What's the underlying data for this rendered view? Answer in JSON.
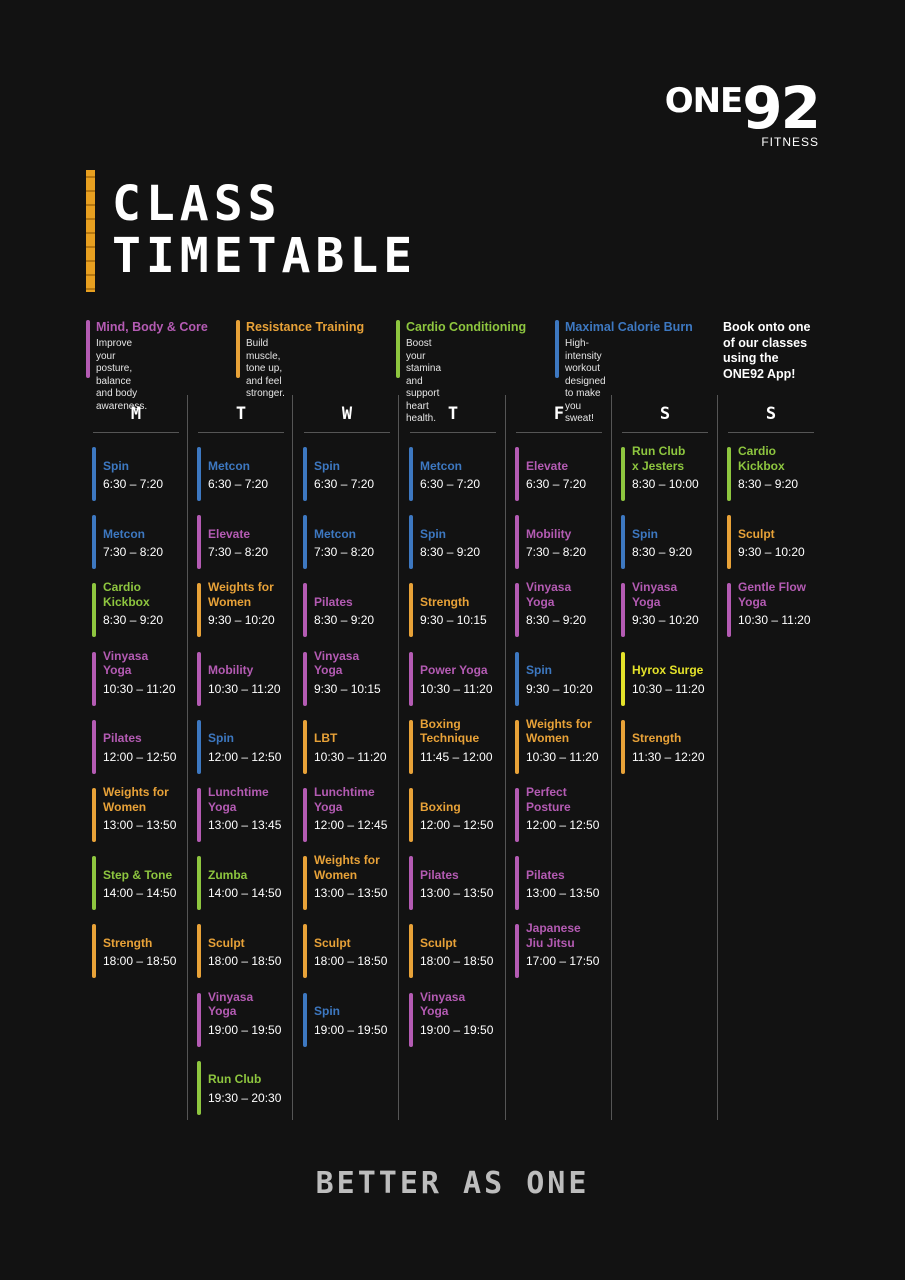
{
  "logo": {
    "one": "ONE",
    "num": "92",
    "sub": "FITNESS"
  },
  "title": {
    "line1": "CLASS",
    "line2": "TIMETABLE"
  },
  "colors": {
    "mind": "#b45bb3",
    "resistance": "#e8a238",
    "cardio": "#8ec63f",
    "calorie": "#3d78c1",
    "hyrox": "#e4e22a",
    "accent": "#e8a020"
  },
  "legend": [
    {
      "title": "Mind, Body & Core",
      "desc": "Improve your posture,\nbalance and body\nawareness.",
      "cat": "mind"
    },
    {
      "title": "Resistance Training",
      "desc": "Build muscle, tone up,\nand feel stronger.",
      "cat": "resistance"
    },
    {
      "title": "Cardio Conditioning",
      "desc": "Boost your stamina and\nsupport heart health.",
      "cat": "cardio"
    },
    {
      "title": "Maximal Calorie Burn",
      "desc": "High-intensity\nworkout designed\nto make you sweat!",
      "cat": "calorie"
    }
  ],
  "book": "Book onto one\nof our classes\nusing the\nONE92 App!",
  "days": [
    {
      "label": "M",
      "classes": [
        {
          "name": "Spin",
          "time": "6:30 – 7:20",
          "cat": "calorie"
        },
        {
          "name": "Metcon",
          "time": "7:30 – 8:20",
          "cat": "calorie"
        },
        {
          "name": "Cardio\nKickbox",
          "time": "8:30 – 9:20",
          "cat": "cardio"
        },
        {
          "name": "Vinyasa\nYoga",
          "time": "10:30 – 11:20",
          "cat": "mind"
        },
        {
          "name": "Pilates",
          "time": "12:00 – 12:50",
          "cat": "mind"
        },
        {
          "name": "Weights for\nWomen",
          "time": "13:00 – 13:50",
          "cat": "resistance"
        },
        {
          "name": "Step & Tone",
          "time": "14:00 – 14:50",
          "cat": "cardio"
        },
        {
          "name": "Strength",
          "time": "18:00 – 18:50",
          "cat": "resistance"
        }
      ]
    },
    {
      "label": "T",
      "classes": [
        {
          "name": "Metcon",
          "time": "6:30 – 7:20",
          "cat": "calorie"
        },
        {
          "name": "Elevate",
          "time": "7:30 – 8:20",
          "cat": "mind"
        },
        {
          "name": "Weights for\nWomen",
          "time": "9:30 – 10:20",
          "cat": "resistance"
        },
        {
          "name": "Mobility",
          "time": "10:30 – 11:20",
          "cat": "mind"
        },
        {
          "name": "Spin",
          "time": "12:00 – 12:50",
          "cat": "calorie"
        },
        {
          "name": "Lunchtime\nYoga",
          "time": "13:00 – 13:45",
          "cat": "mind"
        },
        {
          "name": "Zumba",
          "time": "14:00 – 14:50",
          "cat": "cardio"
        },
        {
          "name": "Sculpt",
          "time": "18:00 – 18:50",
          "cat": "resistance"
        },
        {
          "name": "Vinyasa\nYoga",
          "time": "19:00 – 19:50",
          "cat": "mind"
        },
        {
          "name": "Run Club",
          "time": "19:30 – 20:30",
          "cat": "cardio"
        }
      ]
    },
    {
      "label": "W",
      "classes": [
        {
          "name": "Spin",
          "time": "6:30 – 7:20",
          "cat": "calorie"
        },
        {
          "name": "Metcon",
          "time": "7:30 – 8:20",
          "cat": "calorie"
        },
        {
          "name": "Pilates",
          "time": "8:30 – 9:20",
          "cat": "mind"
        },
        {
          "name": "Vinyasa\nYoga",
          "time": "9:30 – 10:15",
          "cat": "mind"
        },
        {
          "name": "LBT",
          "time": "10:30 – 11:20",
          "cat": "resistance"
        },
        {
          "name": "Lunchtime\nYoga",
          "time": "12:00 – 12:45",
          "cat": "mind"
        },
        {
          "name": "Weights for\nWomen",
          "time": "13:00 – 13:50",
          "cat": "resistance"
        },
        {
          "name": "Sculpt",
          "time": "18:00 – 18:50",
          "cat": "resistance"
        },
        {
          "name": "Spin",
          "time": "19:00 – 19:50",
          "cat": "calorie"
        }
      ]
    },
    {
      "label": "T",
      "classes": [
        {
          "name": "Metcon",
          "time": "6:30 – 7:20",
          "cat": "calorie"
        },
        {
          "name": "Spin",
          "time": "8:30 – 9:20",
          "cat": "calorie"
        },
        {
          "name": "Strength",
          "time": "9:30 – 10:15",
          "cat": "resistance"
        },
        {
          "name": "Power Yoga",
          "time": "10:30 – 11:20",
          "cat": "mind"
        },
        {
          "name": "Boxing\nTechnique",
          "time": "11:45 – 12:00",
          "cat": "resistance"
        },
        {
          "name": "Boxing",
          "time": "12:00 – 12:50",
          "cat": "resistance"
        },
        {
          "name": "Pilates",
          "time": "13:00 – 13:50",
          "cat": "mind"
        },
        {
          "name": "Sculpt",
          "time": "18:00 – 18:50",
          "cat": "resistance"
        },
        {
          "name": "Vinyasa\nYoga",
          "time": "19:00 – 19:50",
          "cat": "mind"
        }
      ]
    },
    {
      "label": "F",
      "classes": [
        {
          "name": "Elevate",
          "time": "6:30 – 7:20",
          "cat": "mind"
        },
        {
          "name": "Mobility",
          "time": "7:30 – 8:20",
          "cat": "mind"
        },
        {
          "name": "Vinyasa\nYoga",
          "time": "8:30 – 9:20",
          "cat": "mind"
        },
        {
          "name": "Spin",
          "time": "9:30 – 10:20",
          "cat": "calorie"
        },
        {
          "name": "Weights for\nWomen",
          "time": "10:30 – 11:20",
          "cat": "resistance"
        },
        {
          "name": "Perfect\nPosture",
          "time": "12:00 – 12:50",
          "cat": "mind"
        },
        {
          "name": "Pilates",
          "time": "13:00 – 13:50",
          "cat": "mind"
        },
        {
          "name": "Japanese\nJiu Jitsu",
          "time": "17:00 – 17:50",
          "cat": "mind"
        }
      ]
    },
    {
      "label": "S",
      "classes": [
        {
          "name": "Run Club\nx Jesters",
          "time": "8:30 – 10:00",
          "cat": "cardio"
        },
        {
          "name": "Spin",
          "time": "8:30 – 9:20",
          "cat": "calorie"
        },
        {
          "name": "Vinyasa\nYoga",
          "time": "9:30 – 10:20",
          "cat": "mind"
        },
        {
          "name": "Hyrox Surge",
          "time": "10:30 – 11:20",
          "cat": "hyrox"
        },
        {
          "name": "Strength",
          "time": "11:30 – 12:20",
          "cat": "resistance"
        }
      ]
    },
    {
      "label": "S",
      "classes": [
        {
          "name": "Cardio\nKickbox",
          "time": "8:30 – 9:20",
          "cat": "cardio"
        },
        {
          "name": "Sculpt",
          "time": "9:30 – 10:20",
          "cat": "resistance"
        },
        {
          "name": "Gentle Flow\nYoga",
          "time": "10:30 – 11:20",
          "cat": "mind"
        }
      ]
    }
  ],
  "footer": "BETTER AS ONE"
}
